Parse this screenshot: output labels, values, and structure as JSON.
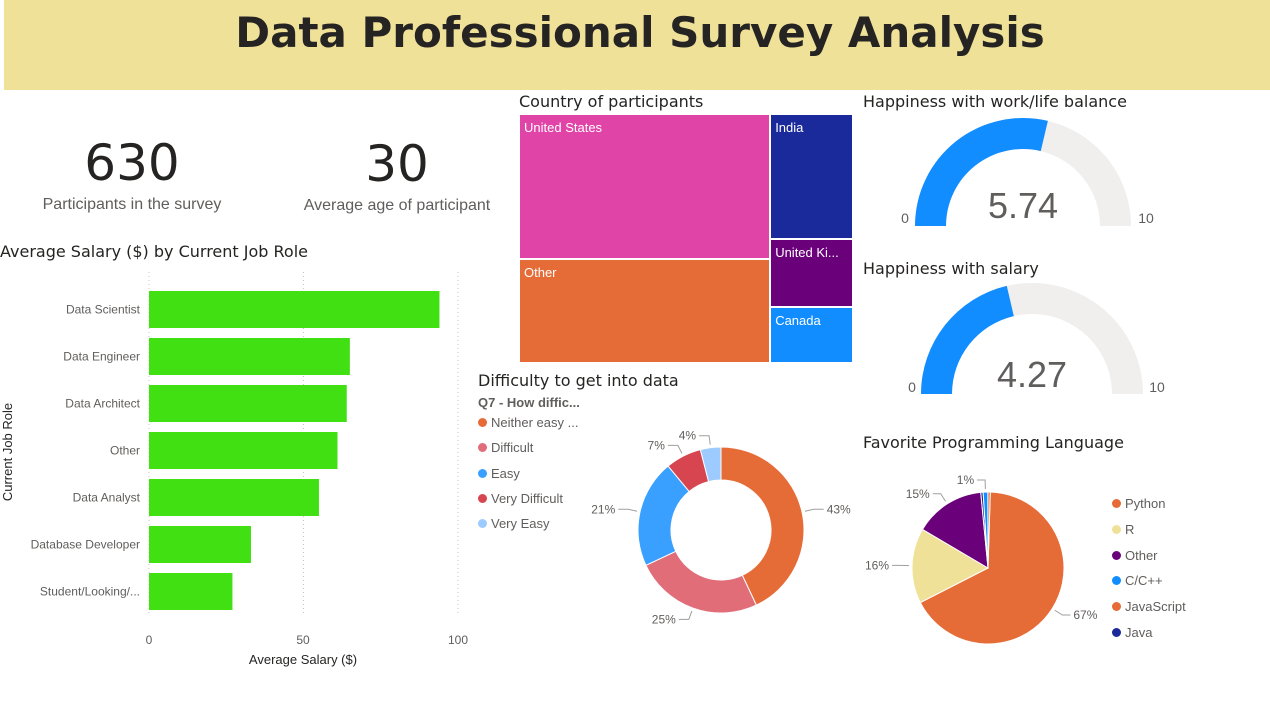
{
  "header": {
    "title": "Data Professional Survey Analysis"
  },
  "kpis": [
    {
      "value": "630",
      "label": "Participants in the survey"
    },
    {
      "value": "30",
      "label": "Average age of participant"
    }
  ],
  "salary_chart": {
    "title": "Average Salary ($) by Current Job Role",
    "ylabel": "Current Job Role",
    "xlabel": "Average Salary ($)",
    "ticks": [
      "0",
      "50",
      "100"
    ]
  },
  "treemap": {
    "title": "Country of participants"
  },
  "donut": {
    "title": "Difficulty to get into data",
    "legend_title": "Q7 - How diffic..."
  },
  "gauges": [
    {
      "title": "Happiness with work/life balance",
      "value": "5.74",
      "min": "0",
      "max": "10",
      "num": 5.74
    },
    {
      "title": "Happiness with salary",
      "value": "4.27",
      "min": "0",
      "max": "10",
      "num": 4.27
    }
  ],
  "pie": {
    "title": "Favorite Programming Language"
  },
  "colors": {
    "banner": "#f0e199",
    "bar": "#40e012",
    "gauge_fill": "#118dff",
    "gauge_track": "#f1efed"
  },
  "chart_data": [
    {
      "type": "bar",
      "orientation": "horizontal",
      "title": "Average Salary ($) by Current Job Role",
      "xlabel": "Average Salary ($)",
      "ylabel": "Current Job Role",
      "categories": [
        "Data Scientist",
        "Data Engineer",
        "Data Architect",
        "Other",
        "Data Analyst",
        "Database Developer",
        "Student/Looking/..."
      ],
      "values": [
        94,
        65,
        64,
        61,
        55,
        33,
        27
      ],
      "xlim": [
        0,
        100
      ],
      "grid": true
    },
    {
      "type": "treemap",
      "title": "Country of participants",
      "labels": [
        "United States",
        "Other",
        "India",
        "United Ki...",
        "Canada"
      ],
      "values": [
        262,
        187,
        74,
        41,
        33
      ],
      "colors": [
        "#e044a7",
        "#e66c37",
        "#1a2a9a",
        "#6b007b",
        "#118dff"
      ]
    },
    {
      "type": "donut",
      "title": "Difficulty to get into data",
      "legend_title": "Q7 - How diffic...",
      "labels": [
        "Neither easy ...",
        "Difficult",
        "Easy",
        "Very Difficult",
        "Very Easy"
      ],
      "values": [
        43,
        25,
        21,
        7,
        4
      ],
      "value_labels": [
        "43%",
        "25%",
        "21%",
        "7%",
        "4%"
      ],
      "colors": [
        "#e66c37",
        "#e06d78",
        "#3aa0ff",
        "#d64550",
        "#9dcbff"
      ]
    },
    {
      "type": "pie",
      "title": "Favorite Programming Language",
      "labels": [
        "Python",
        "R",
        "Other",
        "C/C++",
        "JavaScript",
        "Java"
      ],
      "values": [
        67,
        16,
        15,
        1,
        0.5,
        0.5
      ],
      "value_labels": [
        "67%",
        "16%",
        "15%",
        "1%",
        "",
        ""
      ],
      "colors": [
        "#e66c37",
        "#f0e199",
        "#6b007b",
        "#118dff",
        "#e66c37",
        "#1a2a9a"
      ]
    }
  ]
}
